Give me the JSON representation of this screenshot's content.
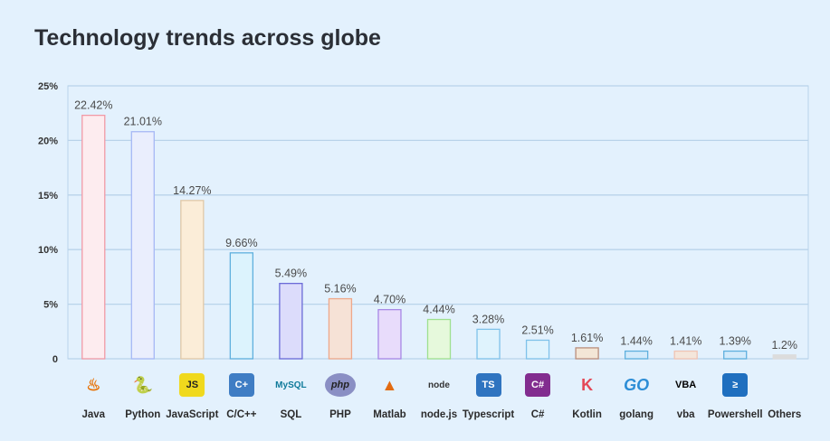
{
  "title": "Technology trends across globe",
  "chart_data": {
    "type": "bar",
    "title": "Technology trends across globe",
    "xlabel": "",
    "ylabel": "",
    "ylim": [
      0,
      25
    ],
    "yticks": [
      0,
      5,
      10,
      15,
      20,
      25
    ],
    "ytick_labels": [
      "0",
      "5%",
      "10%",
      "15%",
      "20%",
      "25%"
    ],
    "grid": true,
    "categories": [
      "Java",
      "Python",
      "JavaScript",
      "C/C++",
      "SQL",
      "PHP",
      "Matlab",
      "node.js",
      "Typescript",
      "C#",
      "Kotlin",
      "golang",
      "vba",
      "Powershell",
      "Others"
    ],
    "values": [
      22.42,
      21.01,
      14.27,
      9.66,
      5.49,
      5.16,
      4.7,
      4.44,
      3.28,
      2.51,
      1.61,
      1.44,
      1.41,
      1.39,
      1.2
    ],
    "data_labels": [
      "22.42%",
      "21.01%",
      "14.27%",
      "9.66%",
      "5.49%",
      "5.16%",
      "4.70%",
      "4.44%",
      "3.28%",
      "2.51%",
      "1.61%",
      "1.44%",
      "1.41%",
      "1.39%",
      "1.2%"
    ],
    "drawn_bar_heights": [
      22.3,
      20.8,
      14.5,
      9.7,
      6.9,
      5.5,
      4.5,
      3.6,
      2.7,
      1.7,
      1.0,
      0.7,
      0.7,
      0.7,
      0.35
    ],
    "bar_fill": [
      "#fdecef",
      "#eaeefd",
      "#fbedd8",
      "#dcf3fd",
      "#dcdcfb",
      "#f6e2d6",
      "#e8dcfb",
      "#e6f9dc",
      "#dff3fd",
      "#dff3fd",
      "#f3e6d6",
      "#d2eafb",
      "#f4e6db",
      "#d2eafb",
      "#dcdcdc"
    ],
    "bar_stroke": [
      "#f19aa6",
      "#a6b8f5",
      "#e0c8a8",
      "#5fb0de",
      "#6b6bd8",
      "#eea88a",
      "#a788e6",
      "#9fe08f",
      "#7fc2ea",
      "#7fc2ea",
      "#b98e7c",
      "#5fb0de",
      "#f0c4b4",
      "#5fb0de",
      "#dcdcdc"
    ]
  },
  "icons": [
    {
      "name": "java-icon",
      "glyph": "♨",
      "color": "#e76f00",
      "bg": "transparent"
    },
    {
      "name": "python-icon",
      "glyph": "🐍",
      "color": "#3776ab",
      "bg": "transparent"
    },
    {
      "name": "javascript-icon",
      "glyph": "JS",
      "color": "#222",
      "bg": "#f0d91d"
    },
    {
      "name": "cpp-icon",
      "glyph": "C+",
      "color": "#fff",
      "bg": "#3f7dc4"
    },
    {
      "name": "mysql-icon",
      "glyph": "MySQL",
      "color": "#0f7a9a",
      "bg": "transparent"
    },
    {
      "name": "php-icon",
      "glyph": "php",
      "color": "#222",
      "bg": "#8a8fc4"
    },
    {
      "name": "matlab-icon",
      "glyph": "▲",
      "color": "#e26b12",
      "bg": "transparent"
    },
    {
      "name": "nodejs-icon",
      "glyph": "node",
      "color": "#333",
      "bg": "transparent"
    },
    {
      "name": "typescript-icon",
      "glyph": "TS",
      "color": "#fff",
      "bg": "#2f74c0"
    },
    {
      "name": "csharp-icon",
      "glyph": "C#",
      "color": "#fff",
      "bg": "#822d8f"
    },
    {
      "name": "kotlin-icon",
      "glyph": "K",
      "color": "#e44857",
      "bg": "transparent"
    },
    {
      "name": "golang-icon",
      "glyph": "GO",
      "color": "#2c8dd6",
      "bg": "transparent"
    },
    {
      "name": "vba-icon",
      "glyph": "VBA",
      "color": "#000",
      "bg": "transparent"
    },
    {
      "name": "powershell-icon",
      "glyph": "≥",
      "color": "#fff",
      "bg": "#1f6fbf"
    },
    {
      "name": "others-icon",
      "glyph": "",
      "color": "#000",
      "bg": "transparent"
    }
  ]
}
